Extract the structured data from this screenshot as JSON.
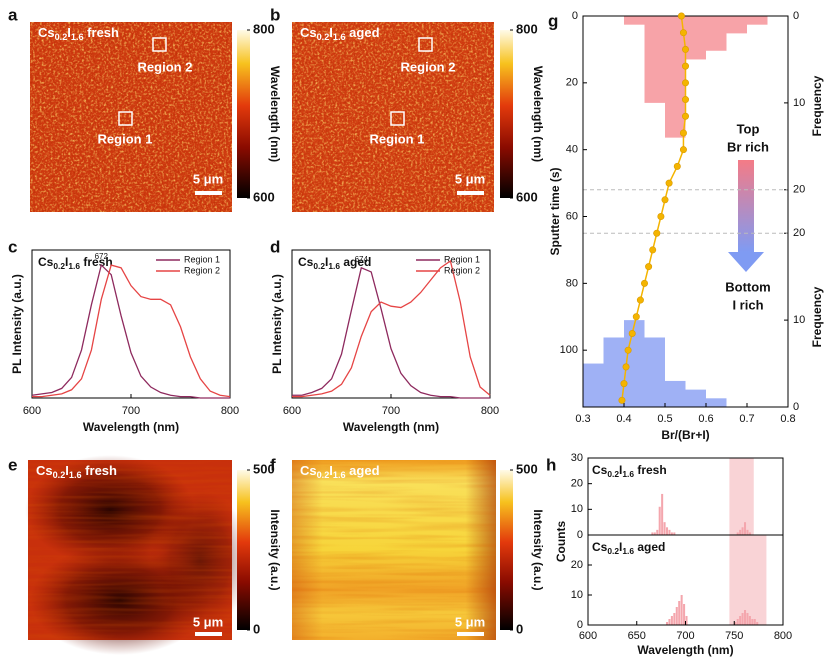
{
  "chart_data": [
    {
      "type": "heatmap",
      "panel": "a",
      "label": [
        {
          "text": "Cs"
        },
        {
          "sub": "0.2"
        },
        {
          "text": "I"
        },
        {
          "sub": "1.6"
        },
        {
          "text": " fresh"
        }
      ],
      "annotations": [
        "Region 1",
        "Region 2"
      ],
      "scale_bar": "5 μm",
      "colorbar": {
        "label": "Wavelength (nm)",
        "lim": [
          600,
          800
        ],
        "ticks": [
          600,
          800
        ]
      }
    },
    {
      "type": "heatmap",
      "panel": "b",
      "label": [
        {
          "text": "Cs"
        },
        {
          "sub": "0.2"
        },
        {
          "text": "I"
        },
        {
          "sub": "1.6"
        },
        {
          "text": " aged"
        }
      ],
      "annotations": [
        "Region 1",
        "Region 2"
      ],
      "scale_bar": "5 μm",
      "colorbar": {
        "label": "Wavelength (nm)",
        "lim": [
          600,
          800
        ],
        "ticks": [
          600,
          800
        ]
      }
    },
    {
      "type": "line",
      "panel": "c",
      "label": [
        {
          "text": "Cs"
        },
        {
          "sub": "0.2"
        },
        {
          "text": "I"
        },
        {
          "sub": "1.6"
        },
        {
          "text": " fresh"
        }
      ],
      "xlabel": "Wavelength (nm)",
      "ylabel": "PL Intensity (a.u.)",
      "peak_label": "672",
      "x": [
        600,
        610,
        620,
        630,
        640,
        650,
        660,
        670,
        680,
        690,
        700,
        710,
        720,
        730,
        740,
        750,
        760,
        770,
        780,
        790,
        800
      ],
      "series": [
        {
          "name": "Region 1",
          "color": "#8e2a5e",
          "values": [
            0.02,
            0.03,
            0.04,
            0.07,
            0.15,
            0.35,
            0.68,
            0.97,
            0.9,
            0.6,
            0.33,
            0.16,
            0.08,
            0.04,
            0.02,
            0.01,
            0.01,
            0,
            0,
            0,
            0
          ]
        },
        {
          "name": "Region 2",
          "color": "#e64545",
          "values": [
            0.01,
            0.01,
            0.02,
            0.03,
            0.06,
            0.14,
            0.35,
            0.72,
            0.97,
            0.95,
            0.82,
            0.74,
            0.72,
            0.72,
            0.68,
            0.52,
            0.3,
            0.14,
            0.05,
            0.02,
            0.01
          ]
        }
      ],
      "xlim": [
        600,
        800
      ],
      "xticks": [
        600,
        700,
        800
      ],
      "ylim": [
        0,
        1.08
      ]
    },
    {
      "type": "line",
      "panel": "d",
      "label": [
        {
          "text": "Cs"
        },
        {
          "sub": "0.2"
        },
        {
          "text": "I"
        },
        {
          "sub": "1.6"
        },
        {
          "text": " aged"
        }
      ],
      "xlabel": "Wavelength (nm)",
      "ylabel": "PL Intensity (a.u.)",
      "peak_label": "674",
      "x": [
        600,
        610,
        620,
        630,
        640,
        650,
        660,
        670,
        680,
        690,
        700,
        710,
        720,
        730,
        740,
        750,
        760,
        770,
        780,
        790,
        800
      ],
      "series": [
        {
          "name": "Region 1",
          "color": "#8e2a5e",
          "values": [
            0.02,
            0.02,
            0.04,
            0.07,
            0.14,
            0.32,
            0.64,
            0.95,
            0.92,
            0.65,
            0.36,
            0.18,
            0.09,
            0.04,
            0.02,
            0.01,
            0.01,
            0,
            0,
            0,
            0
          ]
        },
        {
          "name": "Region 2",
          "color": "#e64545",
          "values": [
            0.01,
            0.01,
            0.02,
            0.03,
            0.05,
            0.1,
            0.22,
            0.45,
            0.63,
            0.7,
            0.67,
            0.66,
            0.7,
            0.77,
            0.86,
            0.95,
            1.0,
            0.7,
            0.3,
            0.08,
            0.02
          ]
        }
      ],
      "xlim": [
        600,
        800
      ],
      "xticks": [
        600,
        700,
        800
      ],
      "ylim": [
        0,
        1.08
      ]
    },
    {
      "type": "heatmap",
      "panel": "e",
      "label": [
        {
          "text": "Cs"
        },
        {
          "sub": "0.2"
        },
        {
          "text": "I"
        },
        {
          "sub": "1.6"
        },
        {
          "text": " fresh"
        }
      ],
      "scale_bar": "5 μm",
      "colorbar": {
        "label": "Intensity (a.u.)",
        "lim": [
          0,
          500
        ],
        "ticks": [
          0,
          500
        ]
      }
    },
    {
      "type": "heatmap",
      "panel": "f",
      "label": [
        {
          "text": "Cs"
        },
        {
          "sub": "0.2"
        },
        {
          "text": "I"
        },
        {
          "sub": "1.6"
        },
        {
          "text": " aged"
        }
      ],
      "scale_bar": "5 μm",
      "colorbar": {
        "label": "Intensity (a.u.)",
        "lim": [
          0,
          500
        ],
        "ticks": [
          0,
          500
        ]
      }
    },
    {
      "type": "depth_profile",
      "panel": "g",
      "xlabel": "Br/(Br+I)",
      "ylabel": "Sputter time (s)",
      "xlim": [
        0.3,
        0.8
      ],
      "xticks": [
        0.3,
        0.4,
        0.5,
        0.6,
        0.7,
        0.8
      ],
      "ylim": [
        0,
        117
      ],
      "yticks": [
        0,
        20,
        40,
        60,
        80,
        100
      ],
      "line": {
        "color": "#f4b400",
        "x": [
          0.54,
          0.545,
          0.55,
          0.55,
          0.55,
          0.55,
          0.55,
          0.545,
          0.545,
          0.53,
          0.51,
          0.5,
          0.49,
          0.48,
          0.47,
          0.46,
          0.45,
          0.44,
          0.43,
          0.42,
          0.41,
          0.405,
          0.4,
          0.395
        ],
        "y": [
          0,
          5,
          10,
          15,
          20,
          25,
          30,
          35,
          40,
          45,
          50,
          55,
          60,
          65,
          70,
          75,
          80,
          85,
          90,
          95,
          100,
          105,
          110,
          115
        ]
      },
      "top_histogram": {
        "label": "Frequency",
        "color": "#f7a3a8",
        "bins": [
          0.4,
          0.45,
          0.5,
          0.55,
          0.6,
          0.65,
          0.7,
          0.75
        ],
        "counts": [
          1,
          10,
          14,
          5,
          4,
          2,
          1
        ],
        "lim": [
          0,
          45
        ],
        "ticks": [
          0,
          10,
          20
        ]
      },
      "bottom_histogram": {
        "label": "Frequency",
        "color": "#9fb1f5",
        "bins": [
          0.3,
          0.35,
          0.4,
          0.45,
          0.5,
          0.55,
          0.6,
          0.65
        ],
        "counts": [
          5,
          8,
          10,
          8,
          3,
          2,
          1
        ],
        "lim": [
          0,
          45
        ],
        "ticks": [
          0,
          10,
          20
        ]
      },
      "annotations": {
        "top": "Top",
        "top_sub": "Br rich",
        "bottom": "Bottom",
        "bottom_sub": "I rich"
      }
    },
    {
      "type": "histogram",
      "panel": "h",
      "xlabel": "Wavelength (nm)",
      "ylabel": "Counts",
      "color": "#f4a6ad",
      "highlight_color": "#f9d3d6",
      "xlim": [
        600,
        800
      ],
      "xticks": [
        600,
        650,
        700,
        750,
        800
      ],
      "panels": [
        {
          "label": [
            {
              "text": "Cs"
            },
            {
              "sub": "0.2"
            },
            {
              "text": "I"
            },
            {
              "sub": "1.6"
            },
            {
              "text": " fresh"
            }
          ],
          "ylim": [
            0,
            30
          ],
          "yticks": [
            0,
            10,
            20,
            30
          ],
          "highlight": [
            745,
            770
          ],
          "series": [
            {
              "bins": [
                665,
                667.5,
                670,
                672.5,
                675,
                677.5,
                680,
                682.5,
                685,
                687.5,
                690
              ],
              "counts": [
                1,
                1,
                2,
                11,
                16,
                5,
                3,
                2,
                1,
                1
              ]
            },
            {
              "bins": [
                752.5,
                755,
                757.5,
                760,
                762.5,
                765,
                767.5
              ],
              "counts": [
                1,
                2,
                3,
                5,
                2,
                1
              ]
            }
          ]
        },
        {
          "label": [
            {
              "text": "Cs"
            },
            {
              "sub": "0.2"
            },
            {
              "text": "I"
            },
            {
              "sub": "1.6"
            },
            {
              "text": " aged"
            }
          ],
          "ylim": [
            0,
            30
          ],
          "yticks": [
            0,
            10,
            20
          ],
          "highlight": [
            745,
            783
          ],
          "series": [
            {
              "bins": [
                680,
                682.5,
                685,
                687.5,
                690,
                692.5,
                695,
                697.5,
                700,
                702.5
              ],
              "counts": [
                1,
                2,
                3,
                4,
                6,
                8,
                10,
                7,
                3
              ]
            },
            {
              "bins": [
                750,
                752.5,
                755,
                757.5,
                760,
                762.5,
                765,
                767.5,
                770,
                772.5,
                775
              ],
              "counts": [
                1,
                2,
                3,
                4,
                5,
                4,
                3,
                2,
                2,
                1
              ]
            }
          ]
        }
      ]
    }
  ]
}
